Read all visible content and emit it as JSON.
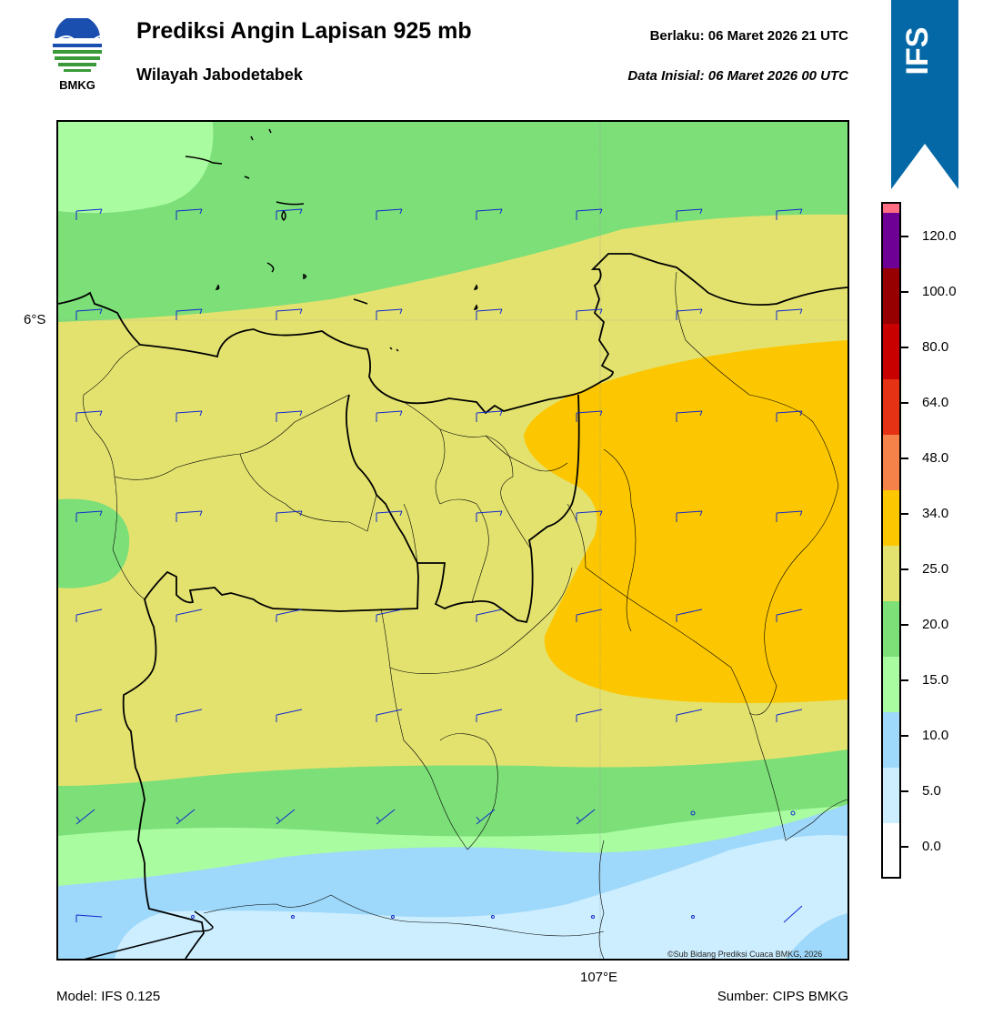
{
  "header": {
    "title": "Prediksi Angin Lapisan 925 mb",
    "region": "Wilayah Jabodetabek",
    "valid_label": "Berlaku:  06 Maret 2026 21 UTC",
    "init_label": "Data Inisial:  06 Maret 2026 00 UTC",
    "logo_text": "BMKG",
    "model_badge": "IFS"
  },
  "map": {
    "lat_label": "6°S",
    "lon_label": "107°E",
    "copyright": "©Sub Bidang Prediksi Cuaca BMKG, 2026"
  },
  "colorbar": {
    "ticks": [
      "0.0",
      "5.0",
      "10.0",
      "15.0",
      "20.0",
      "25.0",
      "34.0",
      "48.0",
      "64.0",
      "80.0",
      "100.0",
      "120.0"
    ],
    "colors": [
      "#ffffff",
      "#cceeff",
      "#9ed8fa",
      "#aafca0",
      "#7cdf78",
      "#e3e26f",
      "#fcc700",
      "#f58248",
      "#e63214",
      "#c80000",
      "#960000",
      "#6e0096",
      "#ff6e82"
    ]
  },
  "footer": {
    "model": "Model: IFS 0.125",
    "source": "Sumber: CIPS BMKG"
  },
  "colors": {
    "ribbon": "#0568a6",
    "barb": "#1028d0"
  }
}
